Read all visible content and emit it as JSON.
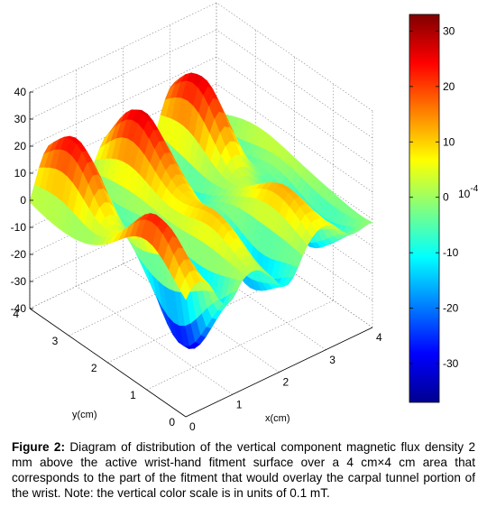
{
  "chart_data": {
    "type": "surface3d",
    "title": "",
    "xlabel": "x(cm)",
    "ylabel": "y(cm)",
    "zlabel": "",
    "xlim": [
      0,
      4
    ],
    "ylim": [
      0,
      4
    ],
    "zlim": [
      -40,
      40
    ],
    "x_ticks": [
      "0",
      "1",
      "2",
      "3",
      "4"
    ],
    "y_ticks": [
      "0",
      "1",
      "2",
      "3",
      "4"
    ],
    "z_ticks": [
      "40",
      "30",
      "20",
      "10",
      "0",
      "-10",
      "-20",
      "-30",
      "-40"
    ],
    "grid": true,
    "colormap": "jet",
    "colorbar": {
      "range": [
        -37,
        33
      ],
      "ticks": [
        "30",
        "20",
        "10",
        "0",
        "-10",
        "-20",
        "-30"
      ],
      "multiplier_label": "10",
      "multiplier_exponent": "-4"
    },
    "surface_features": {
      "ridge_peaks_far_edge": [
        20,
        25,
        28,
        25,
        22,
        20
      ],
      "near_row_peaks": [
        18,
        22,
        10,
        8,
        20
      ],
      "near_row_troughs": [
        -37,
        -30,
        -25,
        -20
      ],
      "edge_values": [
        10,
        10,
        5
      ]
    }
  },
  "caption": {
    "label": "Figure 2:",
    "text": " Diagram of distribution of the vertical component magnetic flux density 2 mm above the active wrist-hand fitment surface over a 4 cm×4 cm area that corresponds to the part of the fitment that would overlay the carpal tunnel portion of the wrist. Note: the vertical color scale is in units of 0.1 mT."
  }
}
